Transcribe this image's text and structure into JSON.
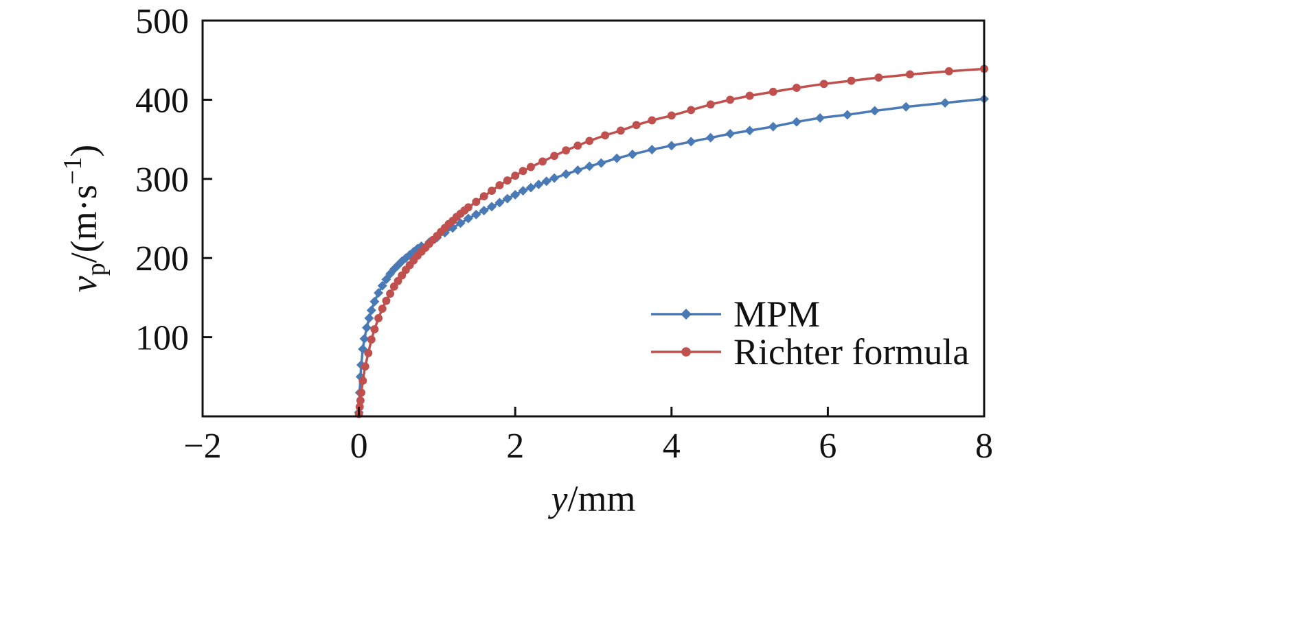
{
  "chart_data": {
    "type": "line",
    "title": "",
    "xlabel": {
      "var": "y",
      "unit": "/mm"
    },
    "ylabel": {
      "var": "v",
      "sub": "p",
      "unit": "/(m·s",
      "sup": "−1",
      "close": ")"
    },
    "xlim": [
      -2,
      8
    ],
    "ylim": [
      0,
      500
    ],
    "xticks": [
      -2,
      0,
      2,
      4,
      6,
      8
    ],
    "xtick_labels": [
      "−2",
      "0",
      "2",
      "4",
      "6",
      "8"
    ],
    "yticks": [
      100,
      200,
      300,
      400,
      500
    ],
    "ytick_labels": [
      "100",
      "200",
      "300",
      "400",
      "500"
    ],
    "grid": false,
    "legend_position": "lower-right",
    "series": [
      {
        "name": "MPM",
        "color": "#4a7ab5",
        "marker": "diamond",
        "x": [
          0,
          0.01,
          0.02,
          0.03,
          0.05,
          0.07,
          0.1,
          0.13,
          0.16,
          0.2,
          0.25,
          0.3,
          0.35,
          0.4,
          0.45,
          0.5,
          0.55,
          0.6,
          0.65,
          0.7,
          0.75,
          0.8,
          0.9,
          1.0,
          1.1,
          1.2,
          1.3,
          1.4,
          1.5,
          1.6,
          1.7,
          1.8,
          1.9,
          2.0,
          2.1,
          2.2,
          2.3,
          2.4,
          2.5,
          2.65,
          2.8,
          2.95,
          3.1,
          3.3,
          3.5,
          3.75,
          4.0,
          4.25,
          4.5,
          4.75,
          5.0,
          5.3,
          5.6,
          5.9,
          6.25,
          6.6,
          7.0,
          7.5,
          8.0
        ],
        "y": [
          5,
          30,
          50,
          65,
          85,
          98,
          112,
          124,
          134,
          145,
          156,
          165,
          173,
          180,
          186,
          191,
          196,
          200,
          204,
          208,
          212,
          215,
          220,
          226,
          232,
          238,
          244,
          250,
          255,
          260,
          265,
          270,
          275,
          280,
          285,
          289,
          293,
          297,
          301,
          306,
          311,
          316,
          320,
          326,
          331,
          337,
          342,
          347,
          352,
          357,
          361,
          366,
          372,
          377,
          381,
          386,
          391,
          396,
          401
        ]
      },
      {
        "name": "Richter formula",
        "color": "#c0504d",
        "marker": "circle",
        "x": [
          0,
          0.01,
          0.02,
          0.03,
          0.05,
          0.08,
          0.12,
          0.16,
          0.2,
          0.25,
          0.3,
          0.35,
          0.4,
          0.45,
          0.5,
          0.55,
          0.6,
          0.65,
          0.7,
          0.75,
          0.8,
          0.85,
          0.9,
          0.95,
          1.0,
          1.05,
          1.1,
          1.15,
          1.2,
          1.25,
          1.3,
          1.35,
          1.4,
          1.5,
          1.6,
          1.7,
          1.8,
          1.9,
          2.0,
          2.1,
          2.2,
          2.35,
          2.5,
          2.65,
          2.8,
          2.95,
          3.15,
          3.35,
          3.55,
          3.75,
          4.0,
          4.25,
          4.5,
          4.75,
          5.0,
          5.3,
          5.6,
          5.95,
          6.3,
          6.65,
          7.05,
          7.55,
          8.0
        ],
        "y": [
          3,
          12,
          20,
          30,
          45,
          63,
          80,
          97,
          110,
          124,
          136,
          146,
          155,
          164,
          171,
          178,
          185,
          191,
          197,
          203,
          208,
          213,
          218,
          223,
          228,
          233,
          238,
          243,
          247,
          252,
          256,
          260,
          264,
          271,
          278,
          285,
          292,
          298,
          304,
          310,
          315,
          322,
          329,
          336,
          342,
          348,
          355,
          361,
          368,
          374,
          380,
          387,
          394,
          400,
          405,
          410,
          415,
          420,
          424,
          428,
          432,
          436,
          439
        ]
      }
    ]
  }
}
